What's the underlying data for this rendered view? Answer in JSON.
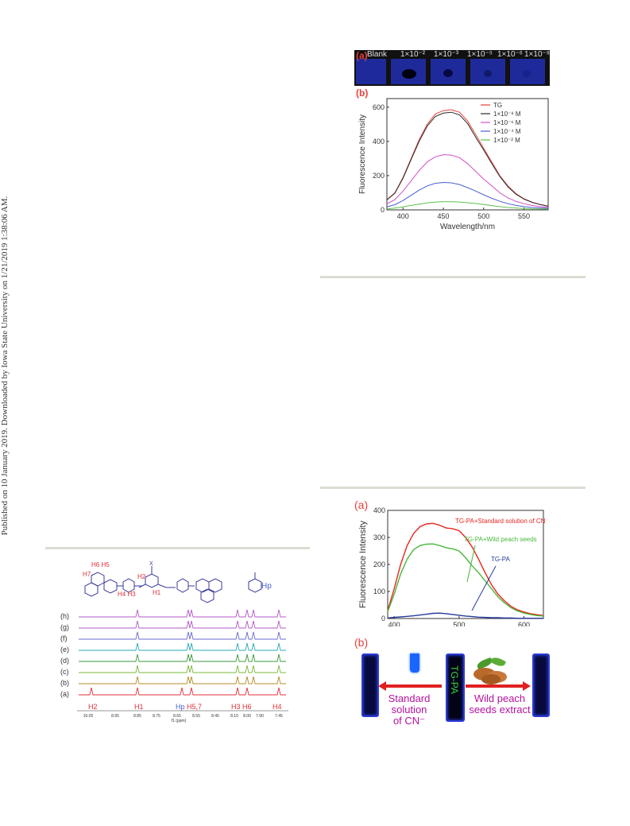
{
  "side_note": "Published on 10 January 2019. Downloaded by Iowa State University on 1/21/2019 1:38:06 AM.",
  "fig_top": {
    "panel_a": {
      "letter": "(a)",
      "cells": [
        "Blank",
        "1×10⁻²",
        "1×10⁻³",
        "1×10⁻⁵",
        "1×10⁻⁶",
        "1×10⁻⁸"
      ],
      "spot_strength": [
        0,
        1,
        0.7,
        0.35,
        0.18,
        0
      ]
    },
    "panel_b_letter": "(b)"
  },
  "fig_bottom_right": {
    "panel_a_letter": "(a)",
    "panel_b_letter": "(b)",
    "panel_b": {
      "left_label": [
        "Standard solution",
        "of CN⁻"
      ],
      "right_label": [
        "Wild peach",
        "seeds extract"
      ],
      "center_vial_text": "TG-PA"
    }
  },
  "nmr_figure": {
    "labels_top": {
      "h6h5": "H6 H5",
      "h7": "H7",
      "h4h3": "H4 H3",
      "h2": "H2",
      "h1": "H1",
      "hp": "Hp",
      "x": "X"
    },
    "trace_labels": [
      "(h)",
      "(g)",
      "(f)",
      "(e)",
      "(d)",
      "(c)",
      "(b)",
      "(a)"
    ],
    "peak_labels": [
      "H2",
      "H1",
      "Hp",
      "H5,7",
      "H3",
      "H6",
      "H4"
    ],
    "axis_ticks": [
      "10.05",
      "8.95",
      "8.85",
      "8.75",
      "8.65",
      "8.55",
      "8.45",
      "8.10",
      "8.00",
      "7.90",
      "7.45"
    ],
    "axis_label": "f1 (ppm)"
  },
  "chart_data": [
    {
      "type": "line",
      "xlabel": "Wavelength/nm",
      "ylabel": "Fluorescence Intensity",
      "xlim": [
        380,
        580
      ],
      "ylim": [
        0,
        650
      ],
      "xticks": [
        400,
        450,
        500,
        550
      ],
      "yticks": [
        0,
        200,
        400,
        600
      ],
      "legend_position": "top-right",
      "series": [
        {
          "name": "TG",
          "color": "#e8403a",
          "peak": 585,
          "x": [
            380,
            390,
            400,
            410,
            420,
            430,
            440,
            450,
            460,
            470,
            480,
            490,
            500,
            510,
            520,
            530,
            540,
            550,
            560,
            570,
            580
          ],
          "values": [
            60,
            100,
            190,
            300,
            410,
            500,
            560,
            580,
            585,
            570,
            520,
            440,
            360,
            280,
            200,
            140,
            95,
            65,
            45,
            32,
            22
          ]
        },
        {
          "name": "1×10⁻⁸ M",
          "color": "#2a2a2a",
          "x": [
            380,
            390,
            400,
            410,
            420,
            430,
            440,
            450,
            460,
            470,
            480,
            490,
            500,
            510,
            520,
            530,
            540,
            550,
            560,
            570,
            580
          ],
          "values": [
            58,
            98,
            185,
            295,
            400,
            490,
            545,
            565,
            570,
            555,
            505,
            425,
            350,
            270,
            195,
            135,
            92,
            63,
            44,
            31,
            21
          ]
        },
        {
          "name": "1×10⁻⁶ M",
          "color": "#d04fc8",
          "x": [
            380,
            390,
            400,
            410,
            420,
            430,
            440,
            450,
            460,
            470,
            480,
            490,
            500,
            510,
            520,
            530,
            540,
            550,
            560,
            570,
            580
          ],
          "values": [
            35,
            60,
            110,
            170,
            230,
            280,
            310,
            322,
            320,
            305,
            270,
            225,
            180,
            140,
            100,
            70,
            50,
            36,
            26,
            19,
            14
          ]
        },
        {
          "name": "1×10⁻⁴ M",
          "color": "#4a5fd0",
          "x": [
            380,
            390,
            400,
            410,
            420,
            430,
            440,
            450,
            460,
            470,
            480,
            490,
            500,
            510,
            520,
            530,
            540,
            550,
            560,
            570,
            580
          ],
          "values": [
            18,
            30,
            55,
            85,
            115,
            140,
            155,
            160,
            158,
            148,
            130,
            110,
            88,
            68,
            50,
            36,
            26,
            19,
            14,
            11,
            9
          ]
        },
        {
          "name": "1×10⁻² M",
          "color": "#5ec24a",
          "x": [
            380,
            390,
            400,
            410,
            420,
            430,
            440,
            450,
            460,
            470,
            480,
            490,
            500,
            510,
            520,
            530,
            540,
            550,
            560,
            570,
            580
          ],
          "values": [
            6,
            10,
            18,
            26,
            34,
            41,
            46,
            48,
            48,
            46,
            42,
            37,
            31,
            25,
            19,
            14,
            11,
            8,
            6,
            5,
            4
          ]
        }
      ]
    },
    {
      "type": "line",
      "xlabel": "Wavelength/nm",
      "ylabel": "Fluorescence Intensity",
      "xlim": [
        390,
        630
      ],
      "ylim": [
        0,
        400
      ],
      "xticks": [
        400,
        500,
        600
      ],
      "yticks": [
        0,
        100,
        200,
        300,
        400
      ],
      "series": [
        {
          "name": "TG-PA+Standard solution of CN⁻",
          "color": "#e8251f",
          "x": [
            390,
            400,
            410,
            420,
            430,
            440,
            450,
            460,
            470,
            480,
            490,
            500,
            510,
            520,
            530,
            540,
            550,
            560,
            570,
            580,
            590,
            600,
            610,
            620,
            630
          ],
          "values": [
            30,
            110,
            200,
            270,
            315,
            340,
            350,
            352,
            345,
            335,
            332,
            325,
            300,
            265,
            220,
            170,
            125,
            90,
            65,
            45,
            32,
            24,
            18,
            14,
            11
          ]
        },
        {
          "name": "TG-PA+Wild peach seeds",
          "color": "#48b83a",
          "x": [
            390,
            400,
            410,
            420,
            430,
            440,
            450,
            460,
            470,
            480,
            490,
            500,
            510,
            520,
            530,
            540,
            550,
            560,
            570,
            580,
            590,
            600,
            610,
            620,
            630
          ],
          "values": [
            25,
            90,
            165,
            220,
            255,
            270,
            275,
            276,
            270,
            262,
            258,
            250,
            225,
            195,
            170,
            140,
            110,
            80,
            58,
            40,
            28,
            20,
            15,
            11,
            9
          ]
        },
        {
          "name": "TG-PA",
          "color": "#273a9c",
          "x": [
            390,
            400,
            410,
            420,
            430,
            440,
            450,
            460,
            470,
            480,
            490,
            500,
            510,
            520,
            530,
            540,
            550,
            560,
            570,
            580,
            590,
            600,
            610,
            620,
            630
          ],
          "values": [
            2,
            4,
            6,
            8,
            10,
            13,
            16,
            19,
            20,
            18,
            15,
            12,
            9,
            7,
            5,
            4,
            3,
            3,
            2,
            2,
            1,
            1,
            1,
            1,
            1
          ]
        }
      ]
    }
  ]
}
